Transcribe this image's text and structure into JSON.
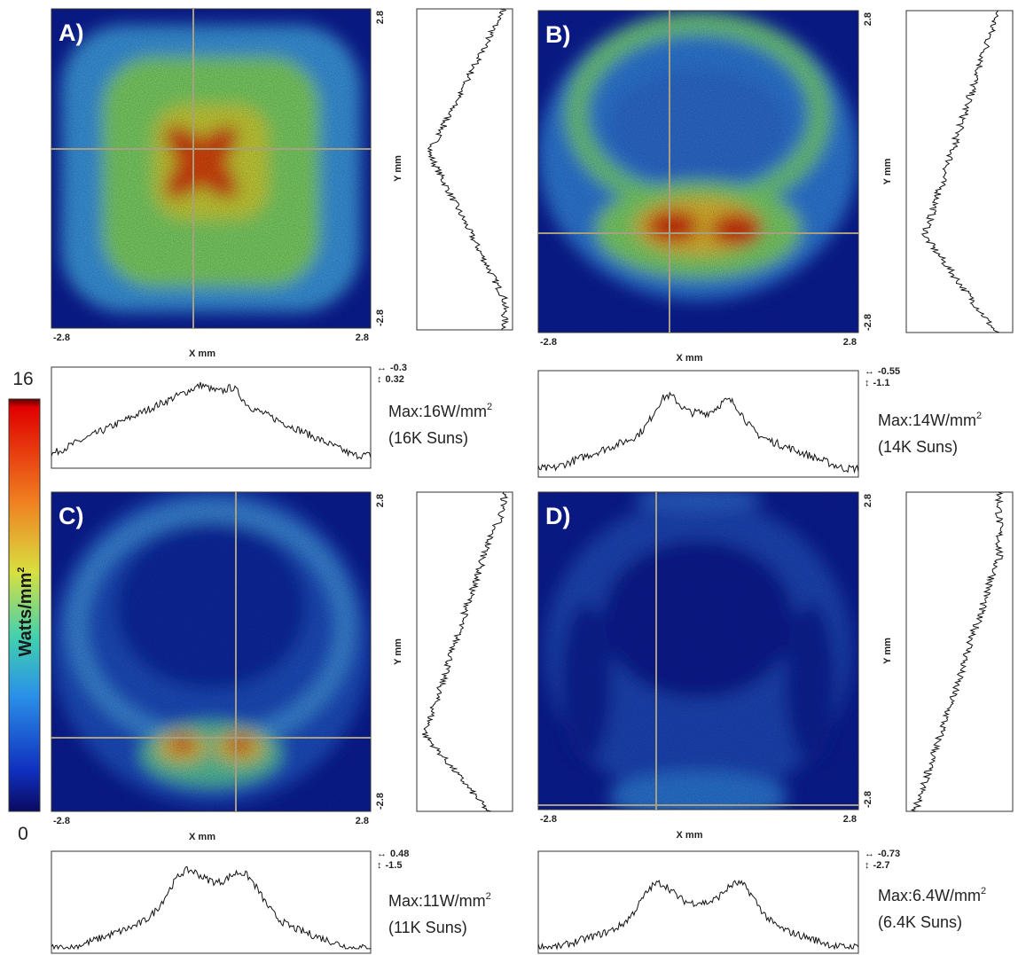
{
  "colorbar": {
    "max": "16",
    "min": "0",
    "label": {
      "text": "Watts/mm",
      "sup": "2"
    }
  },
  "panels": [
    {
      "label": "A)",
      "xticks": [
        "-2.8",
        "2.8"
      ],
      "yticks": [
        "2.8",
        "-2.8"
      ],
      "xlabel": "X mm",
      "ylabel": "Y mm",
      "cursor": [
        {
          "symbol": "↔",
          "value": "-0.3"
        },
        {
          "symbol": "↕",
          "value": "0.32"
        }
      ],
      "max": {
        "text": "Max:16W/mm",
        "sup": "2"
      },
      "suns": "(16K Suns)"
    },
    {
      "label": "B)",
      "xticks": [
        "-2.8",
        "2.8"
      ],
      "yticks": [
        "2.8",
        "-2.8"
      ],
      "xlabel": "X mm",
      "ylabel": "Y mm",
      "cursor": [
        {
          "symbol": "↔",
          "value": "-0.55"
        },
        {
          "symbol": "↕",
          "value": "-1.1"
        }
      ],
      "max": {
        "text": "Max:14W/mm",
        "sup": "2"
      },
      "suns": "(14K Suns)"
    },
    {
      "label": "C)",
      "xticks": [
        "-2.8",
        "2.8"
      ],
      "yticks": [
        "2.8",
        "-2.8"
      ],
      "xlabel": "X mm",
      "ylabel": "Y mm",
      "cursor": [
        {
          "symbol": "↔",
          "value": "0.48"
        },
        {
          "symbol": "↕",
          "value": "-1.5"
        }
      ],
      "max": {
        "text": "Max:11W/mm",
        "sup": "2"
      },
      "suns": "(11K Suns)"
    },
    {
      "label": "D)",
      "xticks": [
        "-2.8",
        "2.8"
      ],
      "yticks": [
        "2.8",
        "-2.8"
      ],
      "xlabel": "X mm",
      "ylabel": "Y mm",
      "cursor": [
        {
          "symbol": "↔",
          "value": "-0.73"
        },
        {
          "symbol": "↕",
          "value": "-2.7"
        }
      ],
      "max": {
        "text": "Max:6.4W/mm",
        "sup": "2"
      },
      "suns": "(6.4K Suns)"
    }
  ]
}
